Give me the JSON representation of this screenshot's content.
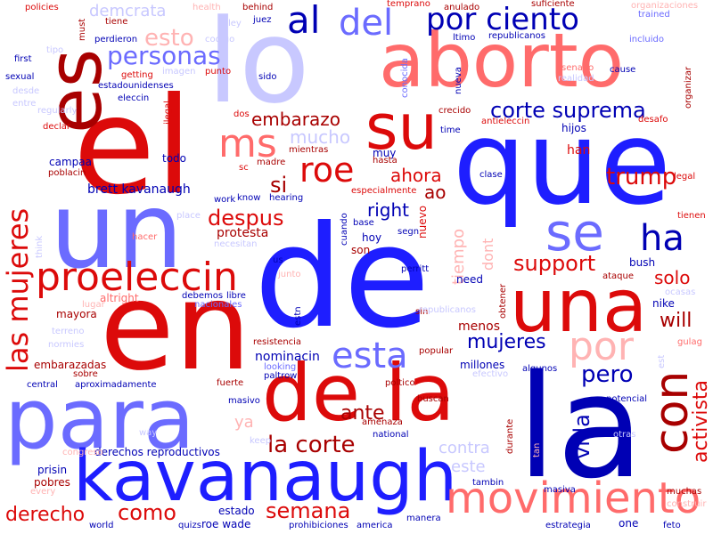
{
  "palette": {
    "dark_red": "#a80000",
    "red": "#dc0a0a",
    "light_red": "#ff6b6b",
    "pale_red": "#ffb3b3",
    "dark_blue": "#0000b4",
    "blue": "#1e1eff",
    "light_blue": "#6b6bff",
    "pale_blue": "#c8c8ff"
  },
  "words": [
    {
      "text": "de",
      "color": "blue"
    },
    {
      "text": "que",
      "color": "blue"
    },
    {
      "text": "lo",
      "color": "pale_blue"
    },
    {
      "text": "el",
      "color": "red"
    },
    {
      "text": "en",
      "color": "red"
    },
    {
      "text": "la",
      "color": "dark_blue"
    },
    {
      "text": "un",
      "color": "light_blue"
    },
    {
      "text": "aborto",
      "color": "light_red"
    },
    {
      "text": "es",
      "color": "dark_red"
    },
    {
      "text": "para",
      "color": "light_blue"
    },
    {
      "text": "de la",
      "color": "red"
    },
    {
      "text": "kavanaugh",
      "color": "blue"
    },
    {
      "text": "una",
      "color": "red"
    },
    {
      "text": "su",
      "color": "red"
    },
    {
      "text": "movimiento",
      "color": "light_red"
    },
    {
      "text": "por ciento",
      "color": "dark_blue"
    },
    {
      "text": "del",
      "color": "light_blue"
    },
    {
      "text": "al",
      "color": "dark_blue"
    },
    {
      "text": "proeleccin",
      "color": "red"
    },
    {
      "text": "las mujeres",
      "color": "red"
    },
    {
      "text": "se",
      "color": "light_blue"
    },
    {
      "text": "ha",
      "color": "dark_blue"
    },
    {
      "text": "con",
      "color": "dark_red"
    },
    {
      "text": "por",
      "color": "pale_red"
    },
    {
      "text": "ms",
      "color": "light_red"
    },
    {
      "text": "roe",
      "color": "red"
    },
    {
      "text": "esta",
      "color": "light_blue"
    },
    {
      "text": "corte suprema",
      "color": "dark_blue"
    },
    {
      "text": "la corte",
      "color": "dark_red"
    },
    {
      "text": "trump",
      "color": "red"
    },
    {
      "text": "personas",
      "color": "light_blue"
    },
    {
      "text": "esto",
      "color": "pale_red"
    },
    {
      "text": "embarazo",
      "color": "dark_red"
    },
    {
      "text": "mucho",
      "color": "pale_blue"
    },
    {
      "text": "despus",
      "color": "red"
    },
    {
      "text": "support",
      "color": "red"
    },
    {
      "text": "mujeres",
      "color": "dark_blue"
    },
    {
      "text": "semana",
      "color": "red"
    },
    {
      "text": "como",
      "color": "red"
    },
    {
      "text": "ahora",
      "color": "red"
    },
    {
      "text": "si",
      "color": "dark_red"
    },
    {
      "text": "ao",
      "color": "dark_red"
    },
    {
      "text": "vida",
      "color": "dark_blue"
    },
    {
      "text": "activista",
      "color": "red"
    },
    {
      "text": "right",
      "color": "dark_blue"
    },
    {
      "text": "tiempo",
      "color": "pale_red"
    },
    {
      "text": "pero",
      "color": "dark_blue"
    },
    {
      "text": "ante",
      "color": "dark_red"
    },
    {
      "text": "dont",
      "color": "pale_red"
    },
    {
      "text": "solo",
      "color": "red"
    },
    {
      "text": "will",
      "color": "dark_red"
    },
    {
      "text": "derecho",
      "color": "red"
    },
    {
      "text": "derechos reproductivos",
      "color": "dark_blue"
    },
    {
      "text": "brett kavanaugh",
      "color": "dark_blue"
    },
    {
      "text": "ya",
      "color": "pale_red"
    },
    {
      "text": "este",
      "color": "pale_blue"
    },
    {
      "text": "contra",
      "color": "pale_blue"
    },
    {
      "text": "protesta",
      "color": "dark_red"
    },
    {
      "text": "demcrata",
      "color": "pale_blue"
    },
    {
      "text": "nominacin",
      "color": "dark_blue"
    },
    {
      "text": "mayora",
      "color": "dark_red"
    },
    {
      "text": "embarazadas",
      "color": "dark_red"
    },
    {
      "text": "menos",
      "color": "dark_red"
    },
    {
      "text": "estado",
      "color": "dark_blue"
    },
    {
      "text": "roe wade",
      "color": "dark_blue"
    },
    {
      "text": "nike",
      "color": "dark_blue"
    },
    {
      "text": "todo",
      "color": "dark_blue"
    },
    {
      "text": "campaa",
      "color": "dark_blue"
    },
    {
      "text": "hoy",
      "color": "dark_blue"
    },
    {
      "text": "son",
      "color": "dark_red"
    },
    {
      "text": "muy",
      "color": "dark_blue"
    },
    {
      "text": "hijos",
      "color": "dark_blue"
    },
    {
      "text": "han",
      "color": "red"
    },
    {
      "text": "nuevo",
      "color": "red"
    },
    {
      "text": "bush",
      "color": "dark_blue"
    },
    {
      "text": "need",
      "color": "dark_blue"
    },
    {
      "text": "altright",
      "color": "light_red"
    },
    {
      "text": "lugar",
      "color": "pale_red"
    },
    {
      "text": "perritt",
      "color": "dark_blue"
    },
    {
      "text": "millones",
      "color": "dark_blue"
    },
    {
      "text": "algunos",
      "color": "dark_blue"
    },
    {
      "text": "potencial",
      "color": "dark_blue"
    },
    {
      "text": "durante",
      "color": "dark_red"
    },
    {
      "text": "tambin",
      "color": "dark_blue"
    },
    {
      "text": "masiva",
      "color": "dark_blue"
    },
    {
      "text": "manera",
      "color": "dark_blue"
    },
    {
      "text": "one",
      "color": "dark_blue"
    },
    {
      "text": "estrategia",
      "color": "dark_blue"
    },
    {
      "text": "feto",
      "color": "dark_blue"
    },
    {
      "text": "america",
      "color": "dark_blue"
    },
    {
      "text": "world",
      "color": "dark_blue"
    },
    {
      "text": "quizs",
      "color": "dark_blue"
    },
    {
      "text": "prohibiciones",
      "color": "dark_blue"
    },
    {
      "text": "prisin",
      "color": "dark_blue"
    },
    {
      "text": "pobres",
      "color": "dark_red"
    },
    {
      "text": "every",
      "color": "pale_red"
    },
    {
      "text": "congreso",
      "color": "pale_red"
    },
    {
      "text": "central",
      "color": "dark_blue"
    },
    {
      "text": "aproximadamente",
      "color": "dark_blue"
    },
    {
      "text": "sobre",
      "color": "dark_red"
    },
    {
      "text": "fuerte",
      "color": "dark_red"
    },
    {
      "text": "masivo",
      "color": "dark_blue"
    },
    {
      "text": "national",
      "color": "dark_blue"
    },
    {
      "text": "amenaza",
      "color": "dark_red"
    },
    {
      "text": "buscan",
      "color": "dark_red"
    },
    {
      "text": "popular",
      "color": "dark_red"
    },
    {
      "text": "poltico",
      "color": "dark_red"
    },
    {
      "text": "resistencia",
      "color": "dark_red"
    },
    {
      "text": "looking",
      "color": "light_blue"
    },
    {
      "text": "paltrow",
      "color": "dark_blue"
    },
    {
      "text": "way",
      "color": "pale_blue"
    },
    {
      "text": "keep",
      "color": "pale_blue"
    },
    {
      "text": "normies",
      "color": "pale_blue"
    },
    {
      "text": "terreno",
      "color": "pale_blue"
    },
    {
      "text": "debemos",
      "color": "dark_blue"
    },
    {
      "text": "libre",
      "color": "dark_blue"
    },
    {
      "text": "nacionales",
      "color": "light_blue"
    },
    {
      "text": "sin",
      "color": "dark_red"
    },
    {
      "text": "segn",
      "color": "dark_blue"
    },
    {
      "text": "base",
      "color": "dark_blue"
    },
    {
      "text": "cuando",
      "color": "dark_blue"
    },
    {
      "text": "estn",
      "color": "dark_blue"
    },
    {
      "text": "obtener",
      "color": "dark_red"
    },
    {
      "text": "ataque",
      "color": "dark_red"
    },
    {
      "text": "ocasas",
      "color": "pale_blue"
    },
    {
      "text": "gulag",
      "color": "light_red"
    },
    {
      "text": "efectivo",
      "color": "pale_blue"
    },
    {
      "text": "muchas",
      "color": "dark_red"
    },
    {
      "text": "construir",
      "color": "pale_red"
    },
    {
      "text": "est",
      "color": "pale_blue"
    },
    {
      "text": "legal",
      "color": "red"
    },
    {
      "text": "clase",
      "color": "dark_blue"
    },
    {
      "text": "tienen",
      "color": "red"
    },
    {
      "text": "especialmente",
      "color": "red"
    },
    {
      "text": "work",
      "color": "dark_blue"
    },
    {
      "text": "know",
      "color": "dark_blue"
    },
    {
      "text": "hearing",
      "color": "dark_blue"
    },
    {
      "text": "us",
      "color": "dark_blue"
    },
    {
      "text": "think",
      "color": "pale_blue"
    },
    {
      "text": "place",
      "color": "pale_blue"
    },
    {
      "text": "hacer",
      "color": "light_red"
    },
    {
      "text": "necesitan",
      "color": "pale_blue"
    },
    {
      "text": "junto",
      "color": "pale_red"
    },
    {
      "text": "madre",
      "color": "dark_red"
    },
    {
      "text": "mientras",
      "color": "dark_red"
    },
    {
      "text": "hasta",
      "color": "dark_red"
    },
    {
      "text": "sc",
      "color": "red"
    },
    {
      "text": "dos",
      "color": "red"
    },
    {
      "text": "crecido",
      "color": "dark_red"
    },
    {
      "text": "antieleccin",
      "color": "red"
    },
    {
      "text": "desafo",
      "color": "red"
    },
    {
      "text": "time",
      "color": "dark_blue"
    },
    {
      "text": "sido",
      "color": "dark_blue"
    },
    {
      "text": "eleccin",
      "color": "dark_blue"
    },
    {
      "text": "ilegal",
      "color": "red"
    },
    {
      "text": "declar",
      "color": "red"
    },
    {
      "text": "regularly",
      "color": "pale_blue"
    },
    {
      "text": "poblacin",
      "color": "dark_red"
    },
    {
      "text": "entre",
      "color": "pale_blue"
    },
    {
      "text": "desde",
      "color": "pale_blue"
    },
    {
      "text": "sexual",
      "color": "dark_blue"
    },
    {
      "text": "first",
      "color": "dark_blue"
    },
    {
      "text": "tipo",
      "color": "pale_blue"
    },
    {
      "text": "getting",
      "color": "red"
    },
    {
      "text": "estadounidenses",
      "color": "dark_blue"
    },
    {
      "text": "imagen",
      "color": "pale_blue"
    },
    {
      "text": "punto",
      "color": "red"
    },
    {
      "text": "perdieron",
      "color": "dark_blue"
    },
    {
      "text": "policies",
      "color": "red"
    },
    {
      "text": "tiene",
      "color": "dark_red"
    },
    {
      "text": "must",
      "color": "dark_red"
    },
    {
      "text": "health",
      "color": "pale_red"
    },
    {
      "text": "ley",
      "color": "pale_blue"
    },
    {
      "text": "behind",
      "color": "dark_red"
    },
    {
      "text": "juez",
      "color": "dark_blue"
    },
    {
      "text": "codigo",
      "color": "pale_blue"
    },
    {
      "text": "temprano",
      "color": "red"
    },
    {
      "text": "anulado",
      "color": "dark_red"
    },
    {
      "text": "suficiente",
      "color": "dark_red"
    },
    {
      "text": "organizaciones",
      "color": "pale_red"
    },
    {
      "text": "trained",
      "color": "light_blue"
    },
    {
      "text": "incluido",
      "color": "light_blue"
    },
    {
      "text": "organizar",
      "color": "dark_red"
    },
    {
      "text": "cause",
      "color": "dark_blue"
    },
    {
      "text": "senado",
      "color": "light_red"
    },
    {
      "text": "realidad",
      "color": "pale_blue"
    },
    {
      "text": "republicanos",
      "color": "dark_blue"
    },
    {
      "text": "ltimo",
      "color": "dark_blue"
    },
    {
      "text": "conocida",
      "color": "light_blue"
    },
    {
      "text": "nueva",
      "color": "dark_blue"
    },
    {
      "text": "republicanos",
      "color": "pale_blue"
    },
    {
      "text": "otras",
      "color": "pale_blue"
    },
    {
      "text": "tan",
      "color": "pale_red"
    }
  ]
}
